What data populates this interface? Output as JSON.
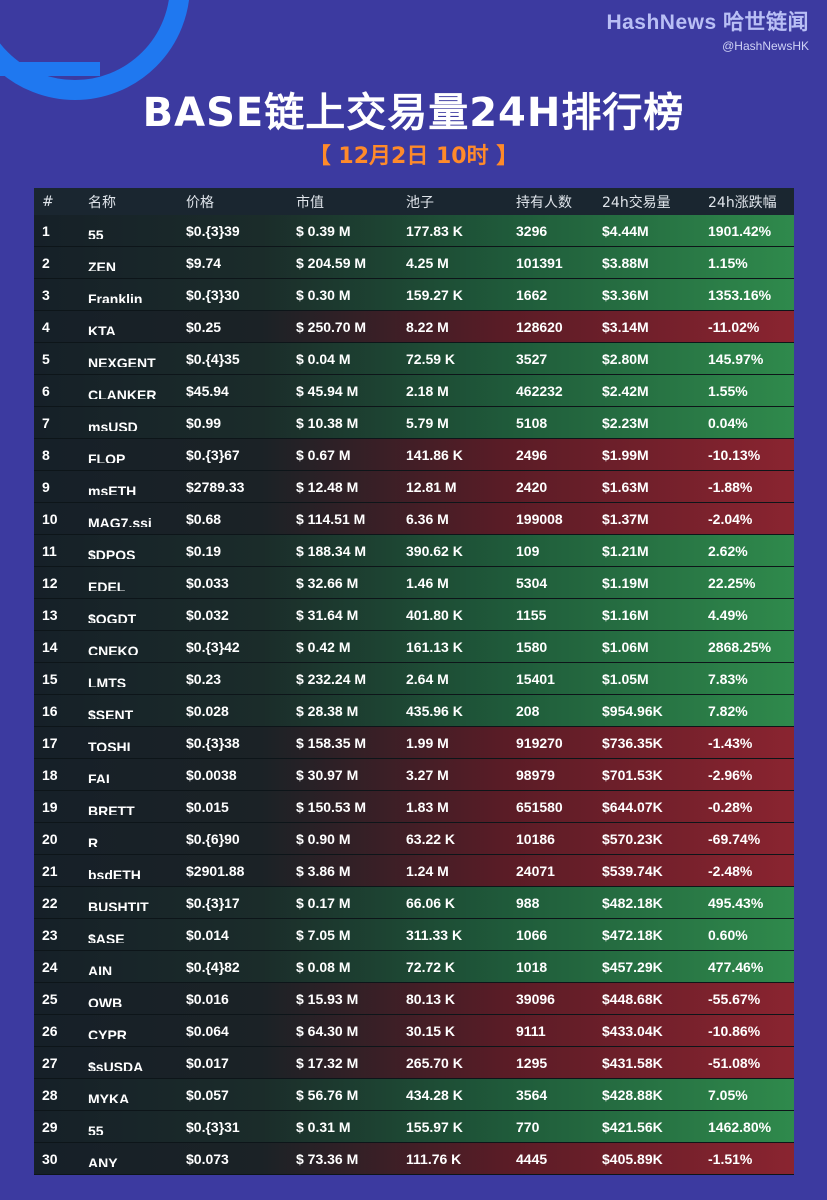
{
  "brand": {
    "name": "HashNews 哈世链闻",
    "handle": "@HashNewsHK"
  },
  "title": "BASE链上交易量24H排行榜",
  "subtitle": "【 12月2日 10时 】",
  "headers": [
    "#",
    "名称",
    "价格",
    "市值",
    "池子",
    "持有人数",
    "24h交易量",
    "24h涨跌幅"
  ],
  "rows": [
    {
      "rank": "1",
      "name": "55",
      "price": "$0.{3}39",
      "mcap": "$ 0.39 M",
      "pool": "177.83 K",
      "holders": "3296",
      "vol": "$4.44M",
      "change": "1901.42%",
      "trend": "up"
    },
    {
      "rank": "2",
      "name": "ZEN",
      "price": "$9.74",
      "mcap": "$ 204.59 M",
      "pool": "4.25 M",
      "holders": "101391",
      "vol": "$3.88M",
      "change": "1.15%",
      "trend": "up"
    },
    {
      "rank": "3",
      "name": "Franklin",
      "price": "$0.{3}30",
      "mcap": "$ 0.30 M",
      "pool": "159.27 K",
      "holders": "1662",
      "vol": "$3.36M",
      "change": "1353.16%",
      "trend": "up"
    },
    {
      "rank": "4",
      "name": "KTA",
      "price": "$0.25",
      "mcap": "$ 250.70 M",
      "pool": "8.22 M",
      "holders": "128620",
      "vol": "$3.14M",
      "change": "-11.02%",
      "trend": "down"
    },
    {
      "rank": "5",
      "name": "NEXGENT",
      "price": "$0.{4}35",
      "mcap": "$ 0.04 M",
      "pool": "72.59 K",
      "holders": "3527",
      "vol": "$2.80M",
      "change": "145.97%",
      "trend": "up"
    },
    {
      "rank": "6",
      "name": "CLANKER",
      "price": "$45.94",
      "mcap": "$ 45.94 M",
      "pool": "2.18 M",
      "holders": "462232",
      "vol": "$2.42M",
      "change": "1.55%",
      "trend": "up"
    },
    {
      "rank": "7",
      "name": "msUSD",
      "price": "$0.99",
      "mcap": "$ 10.38 M",
      "pool": "5.79 M",
      "holders": "5108",
      "vol": "$2.23M",
      "change": "0.04%",
      "trend": "up"
    },
    {
      "rank": "8",
      "name": "FLOP",
      "price": "$0.{3}67",
      "mcap": "$ 0.67 M",
      "pool": "141.86 K",
      "holders": "2496",
      "vol": "$1.99M",
      "change": "-10.13%",
      "trend": "down"
    },
    {
      "rank": "9",
      "name": "msETH",
      "price": "$2789.33",
      "mcap": "$ 12.48 M",
      "pool": "12.81 M",
      "holders": "2420",
      "vol": "$1.63M",
      "change": "-1.88%",
      "trend": "down"
    },
    {
      "rank": "10",
      "name": "MAG7.ssi",
      "price": "$0.68",
      "mcap": "$ 114.51 M",
      "pool": "6.36 M",
      "holders": "199008",
      "vol": "$1.37M",
      "change": "-2.04%",
      "trend": "down"
    },
    {
      "rank": "11",
      "name": "$DPOS",
      "price": "$0.19",
      "mcap": "$ 188.34 M",
      "pool": "390.62 K",
      "holders": "109",
      "vol": "$1.21M",
      "change": "2.62%",
      "trend": "up"
    },
    {
      "rank": "12",
      "name": "EDEL",
      "price": "$0.033",
      "mcap": "$ 32.66 M",
      "pool": "1.46 M",
      "holders": "5304",
      "vol": "$1.19M",
      "change": "22.25%",
      "trend": "up"
    },
    {
      "rank": "13",
      "name": "$OGDT",
      "price": "$0.032",
      "mcap": "$ 31.64 M",
      "pool": "401.80 K",
      "holders": "1155",
      "vol": "$1.16M",
      "change": "4.49%",
      "trend": "up"
    },
    {
      "rank": "14",
      "name": "CNEKO",
      "price": "$0.{3}42",
      "mcap": "$ 0.42 M",
      "pool": "161.13 K",
      "holders": "1580",
      "vol": "$1.06M",
      "change": "2868.25%",
      "trend": "up"
    },
    {
      "rank": "15",
      "name": "LMTS",
      "price": "$0.23",
      "mcap": "$ 232.24 M",
      "pool": "2.64 M",
      "holders": "15401",
      "vol": "$1.05M",
      "change": "7.83%",
      "trend": "up"
    },
    {
      "rank": "16",
      "name": "$SENT",
      "price": "$0.028",
      "mcap": "$ 28.38 M",
      "pool": "435.96 K",
      "holders": "208",
      "vol": "$954.96K",
      "change": "7.82%",
      "trend": "up"
    },
    {
      "rank": "17",
      "name": "TOSHI",
      "price": "$0.{3}38",
      "mcap": "$ 158.35 M",
      "pool": "1.99 M",
      "holders": "919270",
      "vol": "$736.35K",
      "change": "-1.43%",
      "trend": "down"
    },
    {
      "rank": "18",
      "name": "FAI",
      "price": "$0.0038",
      "mcap": "$ 30.97 M",
      "pool": "3.27 M",
      "holders": "98979",
      "vol": "$701.53K",
      "change": "-2.96%",
      "trend": "down"
    },
    {
      "rank": "19",
      "name": "BRETT",
      "price": "$0.015",
      "mcap": "$ 150.53 M",
      "pool": "1.83 M",
      "holders": "651580",
      "vol": "$644.07K",
      "change": "-0.28%",
      "trend": "down"
    },
    {
      "rank": "20",
      "name": "R",
      "price": "$0.{6}90",
      "mcap": "$ 0.90 M",
      "pool": "63.22 K",
      "holders": "10186",
      "vol": "$570.23K",
      "change": "-69.74%",
      "trend": "down"
    },
    {
      "rank": "21",
      "name": "bsdETH",
      "price": "$2901.88",
      "mcap": "$ 3.86 M",
      "pool": "1.24 M",
      "holders": "24071",
      "vol": "$539.74K",
      "change": "-2.48%",
      "trend": "down"
    },
    {
      "rank": "22",
      "name": "BUSHTIT",
      "price": "$0.{3}17",
      "mcap": "$ 0.17 M",
      "pool": "66.06 K",
      "holders": "988",
      "vol": "$482.18K",
      "change": "495.43%",
      "trend": "up"
    },
    {
      "rank": "23",
      "name": "$ASE",
      "price": "$0.014",
      "mcap": "$ 7.05 M",
      "pool": "311.33 K",
      "holders": "1066",
      "vol": "$472.18K",
      "change": "0.60%",
      "trend": "up"
    },
    {
      "rank": "24",
      "name": "AIN",
      "price": "$0.{4}82",
      "mcap": "$ 0.08 M",
      "pool": "72.72 K",
      "holders": "1018",
      "vol": "$457.29K",
      "change": "477.46%",
      "trend": "up"
    },
    {
      "rank": "25",
      "name": "OWB",
      "price": "$0.016",
      "mcap": "$ 15.93 M",
      "pool": "80.13 K",
      "holders": "39096",
      "vol": "$448.68K",
      "change": "-55.67%",
      "trend": "down"
    },
    {
      "rank": "26",
      "name": "CYPR",
      "price": "$0.064",
      "mcap": "$ 64.30 M",
      "pool": "30.15 K",
      "holders": "9111",
      "vol": "$433.04K",
      "change": "-10.86%",
      "trend": "down"
    },
    {
      "rank": "27",
      "name": "$sUSDA",
      "price": "$0.017",
      "mcap": "$ 17.32 M",
      "pool": "265.70 K",
      "holders": "1295",
      "vol": "$431.58K",
      "change": "-51.08%",
      "trend": "down"
    },
    {
      "rank": "28",
      "name": "MYKA",
      "price": "$0.057",
      "mcap": "$ 56.76 M",
      "pool": "434.28 K",
      "holders": "3564",
      "vol": "$428.88K",
      "change": "7.05%",
      "trend": "up"
    },
    {
      "rank": "29",
      "name": "55",
      "price": "$0.{3}31",
      "mcap": "$ 0.31 M",
      "pool": "155.97 K",
      "holders": "770",
      "vol": "$421.56K",
      "change": "1462.80%",
      "trend": "up"
    },
    {
      "rank": "30",
      "name": "ANY",
      "price": "$0.073",
      "mcap": "$ 73.36 M",
      "pool": "111.76 K",
      "holders": "4445",
      "vol": "$405.89K",
      "change": "-1.51%",
      "trend": "down"
    }
  ]
}
